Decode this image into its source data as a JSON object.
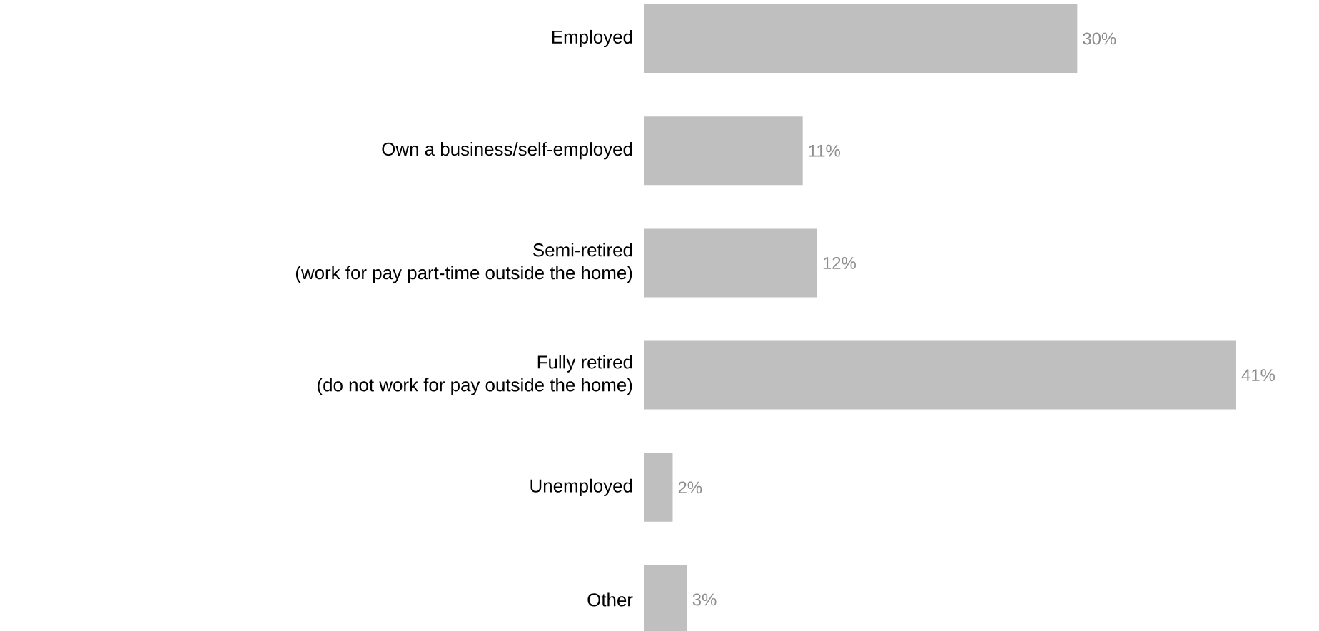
{
  "chart_data": {
    "type": "bar",
    "orientation": "horizontal",
    "data_labels": true,
    "color": "#bfbfbf",
    "categories": [
      "Employed",
      "Own a business/self-employed",
      "Semi-retired\n(work for pay part-time outside the home)",
      "Fully retired\n(do not work for pay outside the home)",
      "Unemployed",
      "Other"
    ],
    "values": [
      30,
      11,
      12,
      41,
      2,
      3
    ],
    "value_labels": [
      "30%",
      "11%",
      "12%",
      "41%",
      "2%",
      "3%"
    ]
  }
}
